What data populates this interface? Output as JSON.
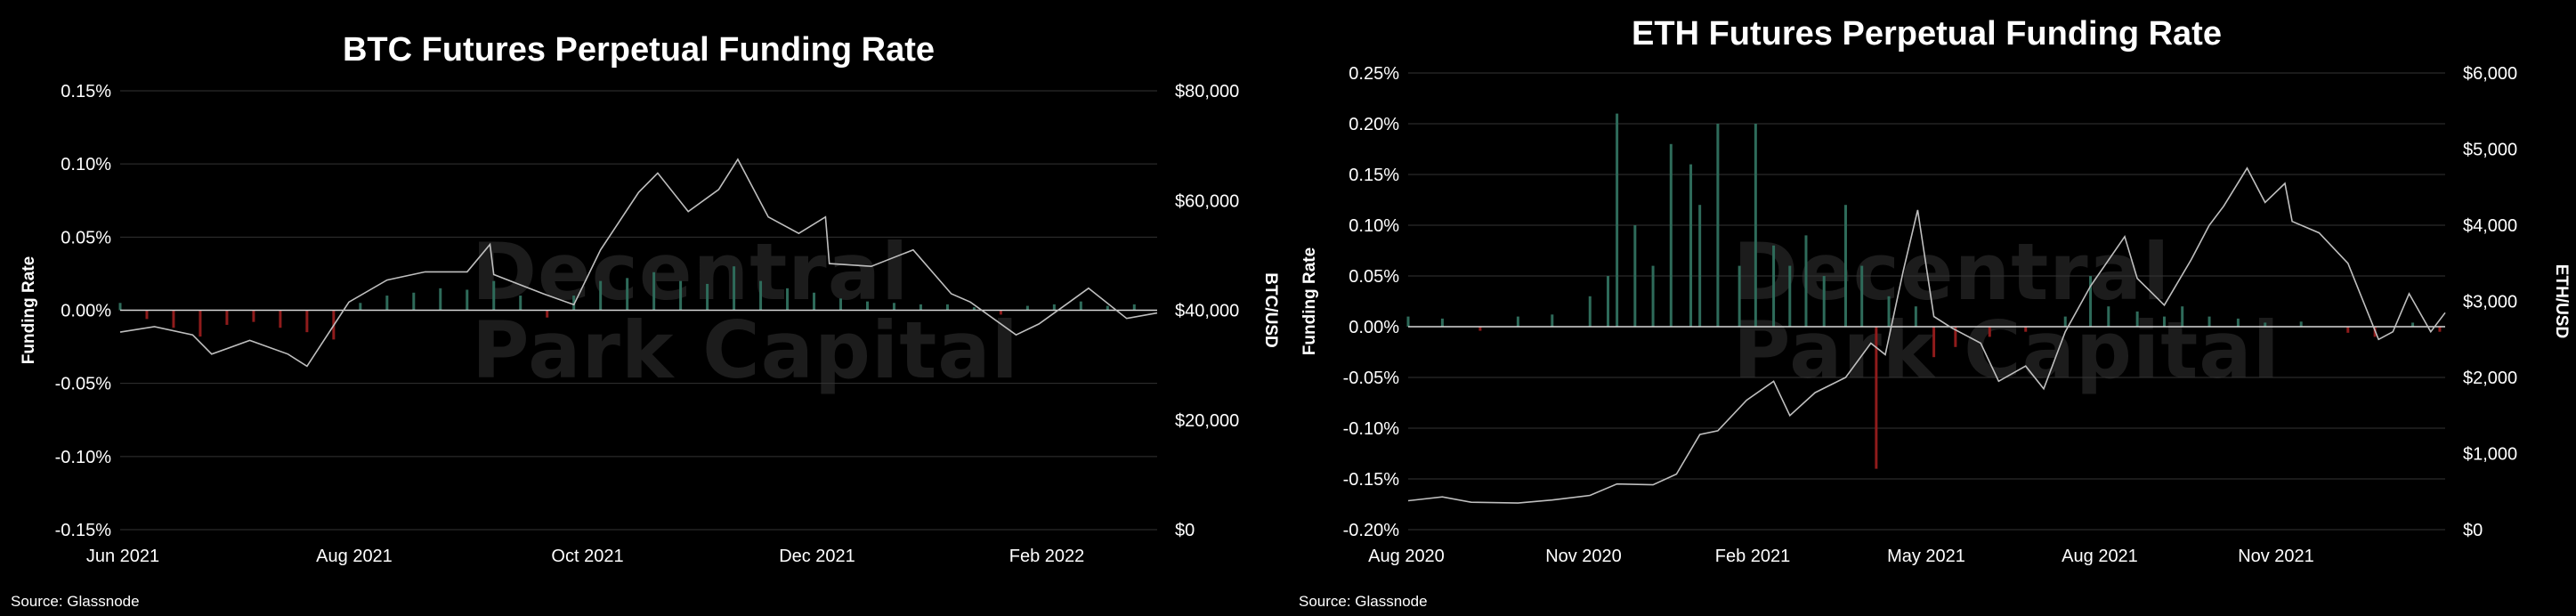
{
  "watermark": {
    "line1": "Decentral",
    "line2": "Park Capital"
  },
  "colors": {
    "background": "#000000",
    "positive": "#2e6b5a",
    "negative": "#8f1b1b",
    "price_line": "#bfbfbf",
    "grid": "#333333",
    "zero_line": "#d9d9d9"
  },
  "chart_data": [
    {
      "type": "bar",
      "title": "BTC Futures Perpetual Funding Rate",
      "ylabel": "Funding Rate",
      "y2label": "BTC/USD",
      "source": "Source: Glassnode",
      "ylim": [
        -0.15,
        0.15
      ],
      "yticks": [
        "0.15%",
        "0.10%",
        "0.05%",
        "0.00%",
        "-0.05%",
        "-0.10%",
        "-0.15%"
      ],
      "y2lim": [
        0,
        80000
      ],
      "y2ticks": [
        "$80,000",
        "$60,000",
        "$40,000",
        "$20,000",
        "$0"
      ],
      "xticks": [
        "Jun 2021",
        "Aug 2021",
        "Oct 2021",
        "Dec 2021",
        "Feb 2022"
      ],
      "x_start": "2021-06-01",
      "x_end": "2022-02-28",
      "series": [
        {
          "name": "Funding Rate",
          "type": "bar",
          "points": [
            [
              "2021-06-01",
              0.005
            ],
            [
              "2021-06-08",
              -0.006
            ],
            [
              "2021-06-15",
              -0.012
            ],
            [
              "2021-06-22",
              -0.018
            ],
            [
              "2021-06-29",
              -0.01
            ],
            [
              "2021-07-06",
              -0.008
            ],
            [
              "2021-07-13",
              -0.012
            ],
            [
              "2021-07-20",
              -0.015
            ],
            [
              "2021-07-27",
              -0.02
            ],
            [
              "2021-08-03",
              0.005
            ],
            [
              "2021-08-10",
              0.01
            ],
            [
              "2021-08-17",
              0.012
            ],
            [
              "2021-08-24",
              0.015
            ],
            [
              "2021-08-31",
              0.014
            ],
            [
              "2021-09-07",
              0.02
            ],
            [
              "2021-09-14",
              0.01
            ],
            [
              "2021-09-21",
              -0.005
            ],
            [
              "2021-09-28",
              0.01
            ],
            [
              "2021-10-05",
              0.02
            ],
            [
              "2021-10-12",
              0.022
            ],
            [
              "2021-10-19",
              0.026
            ],
            [
              "2021-10-26",
              0.02
            ],
            [
              "2021-11-02",
              0.018
            ],
            [
              "2021-11-09",
              0.03
            ],
            [
              "2021-11-16",
              0.02
            ],
            [
              "2021-11-23",
              0.015
            ],
            [
              "2021-11-30",
              0.012
            ],
            [
              "2021-12-07",
              0.008
            ],
            [
              "2021-12-14",
              0.006
            ],
            [
              "2021-12-21",
              0.005
            ],
            [
              "2021-12-28",
              0.004
            ],
            [
              "2022-01-04",
              0.004
            ],
            [
              "2022-01-11",
              0.002
            ],
            [
              "2022-01-18",
              -0.003
            ],
            [
              "2022-01-25",
              0.003
            ],
            [
              "2022-02-01",
              0.004
            ],
            [
              "2022-02-08",
              0.006
            ],
            [
              "2022-02-15",
              0.003
            ],
            [
              "2022-02-22",
              0.004
            ]
          ]
        },
        {
          "name": "BTC/USD",
          "type": "line",
          "points": [
            [
              "2021-06-01",
              36000
            ],
            [
              "2021-06-10",
              37000
            ],
            [
              "2021-06-20",
              35500
            ],
            [
              "2021-06-25",
              32000
            ],
            [
              "2021-07-05",
              34500
            ],
            [
              "2021-07-15",
              32000
            ],
            [
              "2021-07-20",
              29800
            ],
            [
              "2021-07-31",
              41500
            ],
            [
              "2021-08-10",
              45500
            ],
            [
              "2021-08-20",
              47000
            ],
            [
              "2021-08-31",
              47000
            ],
            [
              "2021-09-06",
              52000
            ],
            [
              "2021-09-07",
              46500
            ],
            [
              "2021-09-20",
              43000
            ],
            [
              "2021-09-28",
              41000
            ],
            [
              "2021-10-05",
              51000
            ],
            [
              "2021-10-15",
              61500
            ],
            [
              "2021-10-20",
              65000
            ],
            [
              "2021-10-28",
              58000
            ],
            [
              "2021-11-05",
              62000
            ],
            [
              "2021-11-10",
              67500
            ],
            [
              "2021-11-18",
              57000
            ],
            [
              "2021-11-26",
              54000
            ],
            [
              "2021-12-03",
              57000
            ],
            [
              "2021-12-04",
              48500
            ],
            [
              "2021-12-15",
              48000
            ],
            [
              "2021-12-26",
              51000
            ],
            [
              "2022-01-05",
              43000
            ],
            [
              "2022-01-10",
              41500
            ],
            [
              "2022-01-22",
              35500
            ],
            [
              "2022-01-28",
              37500
            ],
            [
              "2022-02-05",
              41500
            ],
            [
              "2022-02-10",
              44000
            ],
            [
              "2022-02-20",
              38500
            ],
            [
              "2022-02-28",
              39500
            ]
          ]
        }
      ]
    },
    {
      "type": "bar",
      "title": "ETH Futures Perpetual Funding Rate",
      "ylabel": "Funding Rate",
      "y2label": "ETH/USD",
      "source": "Source: Glassnode",
      "ylim": [
        -0.2,
        0.25
      ],
      "yticks": [
        "0.25%",
        "0.20%",
        "0.15%",
        "0.10%",
        "0.05%",
        "0.00%",
        "-0.05%",
        "-0.10%",
        "-0.15%",
        "-0.20%"
      ],
      "y2lim": [
        0,
        6000
      ],
      "y2ticks": [
        "$6,000",
        "$5,000",
        "$4,000",
        "$3,000",
        "$2,000",
        "$1,000",
        "$0"
      ],
      "xticks": [
        "Aug 2020",
        "Nov 2020",
        "Feb 2021",
        "May 2021",
        "Aug 2021",
        "Nov 2021"
      ],
      "x_start": "2020-08-01",
      "x_end": "2022-02-28",
      "series": [
        {
          "name": "Funding Rate",
          "type": "bar",
          "points": [
            [
              "2020-08-01",
              0.01
            ],
            [
              "2020-08-20",
              0.008
            ],
            [
              "2020-09-10",
              -0.004
            ],
            [
              "2020-10-01",
              0.01
            ],
            [
              "2020-10-20",
              0.012
            ],
            [
              "2020-11-10",
              0.03
            ],
            [
              "2020-11-20",
              0.05
            ],
            [
              "2020-11-25",
              0.21
            ],
            [
              "2020-12-05",
              0.1
            ],
            [
              "2020-12-15",
              0.06
            ],
            [
              "2020-12-25",
              0.18
            ],
            [
              "2021-01-05",
              0.16
            ],
            [
              "2021-01-10",
              0.12
            ],
            [
              "2021-01-20",
              0.2
            ],
            [
              "2021-02-01",
              0.06
            ],
            [
              "2021-02-10",
              0.2
            ],
            [
              "2021-02-20",
              0.08
            ],
            [
              "2021-03-01",
              0.06
            ],
            [
              "2021-03-10",
              0.09
            ],
            [
              "2021-03-20",
              0.05
            ],
            [
              "2021-04-01",
              0.12
            ],
            [
              "2021-04-10",
              0.06
            ],
            [
              "2021-04-18",
              -0.14
            ],
            [
              "2021-04-25",
              0.03
            ],
            [
              "2021-05-10",
              0.02
            ],
            [
              "2021-05-20",
              -0.03
            ],
            [
              "2021-06-01",
              -0.02
            ],
            [
              "2021-06-20",
              -0.01
            ],
            [
              "2021-07-10",
              -0.005
            ],
            [
              "2021-08-01",
              0.01
            ],
            [
              "2021-08-15",
              0.05
            ],
            [
              "2021-08-25",
              0.02
            ],
            [
              "2021-09-10",
              0.015
            ],
            [
              "2021-09-25",
              0.01
            ],
            [
              "2021-10-05",
              0.02
            ],
            [
              "2021-10-20",
              0.01
            ],
            [
              "2021-11-05",
              0.008
            ],
            [
              "2021-11-20",
              0.004
            ],
            [
              "2021-12-10",
              0.005
            ],
            [
              "2022-01-05",
              -0.006
            ],
            [
              "2022-01-20",
              -0.01
            ],
            [
              "2022-02-10",
              0.004
            ],
            [
              "2022-02-25",
              -0.005
            ]
          ]
        },
        {
          "name": "ETH/USD",
          "type": "line",
          "points": [
            [
              "2020-08-01",
              380
            ],
            [
              "2020-08-20",
              430
            ],
            [
              "2020-09-05",
              360
            ],
            [
              "2020-10-01",
              350
            ],
            [
              "2020-10-20",
              390
            ],
            [
              "2020-11-10",
              450
            ],
            [
              "2020-11-25",
              600
            ],
            [
              "2020-12-15",
              590
            ],
            [
              "2020-12-28",
              730
            ],
            [
              "2021-01-10",
              1250
            ],
            [
              "2021-01-20",
              1300
            ],
            [
              "2021-02-05",
              1700
            ],
            [
              "2021-02-20",
              1950
            ],
            [
              "2021-03-01",
              1500
            ],
            [
              "2021-03-15",
              1800
            ],
            [
              "2021-04-01",
              2000
            ],
            [
              "2021-04-15",
              2450
            ],
            [
              "2021-04-23",
              2300
            ],
            [
              "2021-05-03",
              3400
            ],
            [
              "2021-05-11",
              4200
            ],
            [
              "2021-05-20",
              2800
            ],
            [
              "2021-05-30",
              2650
            ],
            [
              "2021-06-15",
              2450
            ],
            [
              "2021-06-25",
              1950
            ],
            [
              "2021-07-10",
              2150
            ],
            [
              "2021-07-20",
              1850
            ],
            [
              "2021-08-01",
              2600
            ],
            [
              "2021-08-15",
              3200
            ],
            [
              "2021-09-03",
              3850
            ],
            [
              "2021-09-10",
              3300
            ],
            [
              "2021-09-25",
              2950
            ],
            [
              "2021-10-10",
              3550
            ],
            [
              "2021-10-20",
              4000
            ],
            [
              "2021-10-28",
              4250
            ],
            [
              "2021-11-10",
              4750
            ],
            [
              "2021-11-20",
              4300
            ],
            [
              "2021-12-01",
              4550
            ],
            [
              "2021-12-05",
              4050
            ],
            [
              "2021-12-20",
              3900
            ],
            [
              "2022-01-05",
              3500
            ],
            [
              "2022-01-22",
              2500
            ],
            [
              "2022-01-30",
              2600
            ],
            [
              "2022-02-08",
              3100
            ],
            [
              "2022-02-20",
              2600
            ],
            [
              "2022-02-28",
              2850
            ]
          ]
        }
      ]
    }
  ]
}
